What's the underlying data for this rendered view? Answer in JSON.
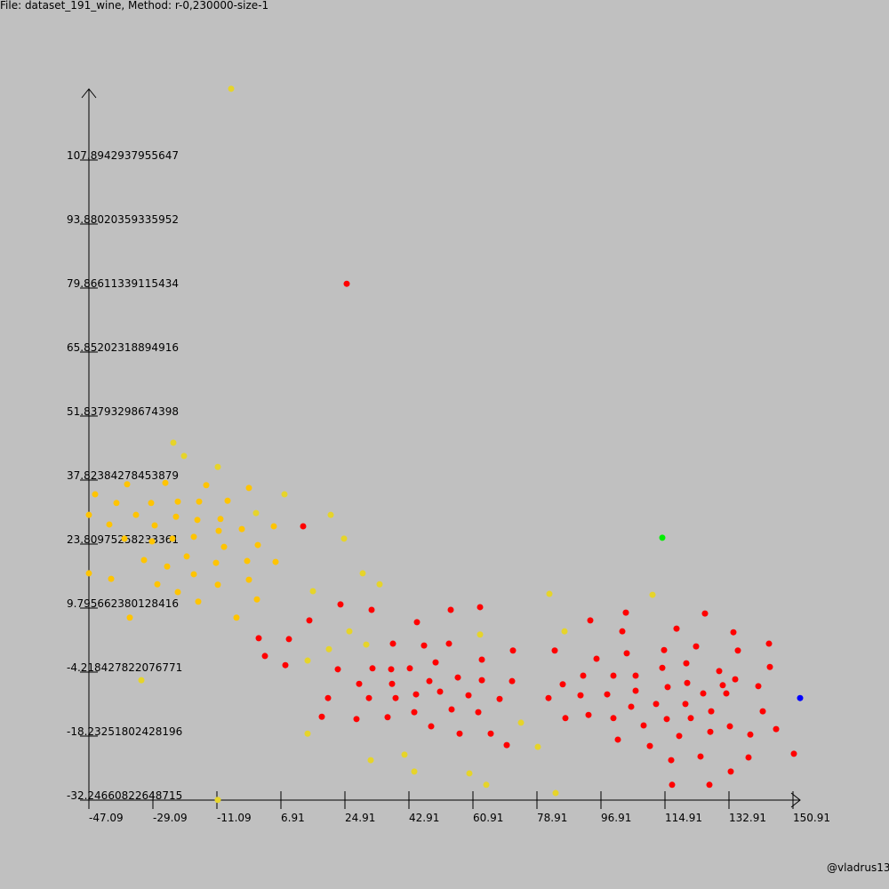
{
  "chart_data": {
    "type": "scatter",
    "title": "File: dataset_191_wine, Method: r-0,230000-size-1",
    "credit": "@vladrus13",
    "xlim": [
      -47.09,
      152.91
    ],
    "xticks": [
      -47.09,
      -29.09,
      -11.09,
      6.91,
      24.91,
      42.91,
      60.91,
      78.91,
      96.91,
      114.91,
      132.91,
      150.91
    ],
    "ylim": [
      -32.24660822648715,
      123.4654
    ],
    "yticks": [
      -32.24660822648715,
      -18.23251802428196,
      -4.218427822076771,
      9.795662380128416,
      23.80975258233361,
      37.82384278453879,
      51.83793298674398,
      65.85202318894916,
      79.86611339115434,
      93.88020359335952,
      107.8942937955647
    ],
    "series": [
      {
        "color": "#e6d42a",
        "x": [
          -7.09,
          -23.34,
          -20.34,
          -10.84,
          -0.09,
          7.91,
          20.91,
          24.66,
          15.91,
          29.91,
          34.66,
          26.16,
          30.91,
          20.41,
          14.41,
          -32.34,
          14.41,
          32.16,
          41.66,
          44.41,
          59.91,
          64.66,
          62.91,
          74.41,
          79.16,
          82.41,
          86.66,
          84.16,
          111.41,
          -10.84
        ],
        "y": [
          123.5,
          46.0,
          43.1,
          40.7,
          30.6,
          34.7,
          30.2,
          25.0,
          13.5,
          17.4,
          15.0,
          4.7,
          1.8,
          0.8,
          -1.7,
          -6.0,
          -17.7,
          -23.5,
          -22.3,
          -26.0,
          -26.4,
          -28.9,
          4.0,
          -15.3,
          -20.6,
          12.9,
          4.7,
          -30.7,
          12.7,
          -32.2
        ]
      },
      {
        "color": "#ffc400",
        "x": [
          -45.34,
          -47.09,
          -47.09,
          -41.34,
          -39.34,
          -40.84,
          -36.34,
          -37.09,
          -35.59,
          -33.84,
          -31.59,
          -29.59,
          -28.59,
          -29.34,
          -27.84,
          -25.59,
          -25.09,
          -23.59,
          -22.59,
          -22.09,
          -22.09,
          -19.59,
          -17.59,
          -17.59,
          -16.59,
          -16.09,
          -16.34,
          -14.09,
          -11.34,
          -10.59,
          -10.09,
          -9.09,
          -10.84,
          -8.09,
          -5.59,
          -4.09,
          -2.59,
          -2.09,
          -2.09,
          0.41,
          0.16,
          4.91,
          5.41
        ],
        "y": [
          34.7,
          30.2,
          17.4,
          28.1,
          32.8,
          16.2,
          36.9,
          25.0,
          7.7,
          30.2,
          20.3,
          32.8,
          27.9,
          24.4,
          15.0,
          37.2,
          18.9,
          25.0,
          29.8,
          33.1,
          13.3,
          21.1,
          25.4,
          17.2,
          29.1,
          33.1,
          11.2,
          36.7,
          19.7,
          26.7,
          29.3,
          23.2,
          14.9,
          33.3,
          7.7,
          27.1,
          20.1,
          36.1,
          16.0,
          23.6,
          11.7,
          27.7,
          19.9
        ]
      },
      {
        "color": "#ff0000",
        "x": [
          25.41,
          13.16,
          23.66,
          14.91,
          32.41,
          0.66,
          9.16,
          2.41,
          8.16,
          22.91,
          20.16,
          18.41,
          28.16,
          28.91,
          31.66,
          32.66,
          38.41,
          37.91,
          38.16,
          39.16,
          36.91,
          45.16,
          47.16,
          43.16,
          44.91,
          44.41,
          49.16,
          50.41,
          48.66,
          51.66,
          54.66,
          54.16,
          56.66,
          54.91,
          59.66,
          57.16,
          62.91,
          63.41,
          63.41,
          62.41,
          65.91,
          72.16,
          71.91,
          68.41,
          70.41,
          82.16,
          83.91,
          86.16,
          86.91,
          91.91,
          91.16,
          93.91,
          95.66,
          93.41,
          98.66,
          100.41,
          100.41,
          101.66,
          103.91,
          102.91,
          104.16,
          106.66,
          106.66,
          105.41,
          108.91,
          110.66,
          112.41,
          114.16,
          114.66,
          115.66,
          115.41,
          116.66,
          116.91,
          118.16,
          118.91,
          120.91,
          121.16,
          120.66,
          122.16,
          123.66,
          124.91,
          126.16,
          125.66,
          127.91,
          127.66,
          127.41,
          130.16,
          131.16,
          133.16,
          133.41,
          134.16,
          134.66,
          135.41,
          132.16,
          138.41,
          138.91,
          141.16,
          142.41,
          144.41,
          144.16,
          146.16,
          151.16
        ],
        "y": [
          80.8,
          27.7,
          10.6,
          7.1,
          9.4,
          3.2,
          3.0,
          -0.7,
          -2.7,
          -3.6,
          -9.9,
          -14.0,
          -14.5,
          -6.8,
          -9.9,
          -3.4,
          2.0,
          -3.6,
          -6.8,
          -9.9,
          -14.1,
          6.7,
          1.6,
          -3.4,
          -9.1,
          -13.0,
          -16.1,
          -2.1,
          -6.2,
          -8.5,
          9.4,
          2.0,
          -5.4,
          -12.4,
          -9.3,
          -17.7,
          10.0,
          -1.5,
          -6.0,
          -13.0,
          -17.7,
          0.5,
          -6.2,
          -10.1,
          -20.2,
          -9.9,
          0.5,
          -6.9,
          -14.3,
          -5.0,
          -9.3,
          7.1,
          -1.3,
          -13.6,
          -9.1,
          -5.0,
          -14.3,
          -19.0,
          8.8,
          4.7,
          -0.1,
          -5.0,
          -8.3,
          -11.8,
          -15.9,
          -20.4,
          -11.2,
          -3.3,
          0.6,
          -7.5,
          -14.5,
          -23.5,
          -28.9,
          5.3,
          -18.2,
          -2.3,
          -6.6,
          -11.2,
          -14.3,
          1.4,
          -22.7,
          8.6,
          -8.9,
          -12.8,
          -17.3,
          -28.9,
          -4.0,
          -7.1,
          -16.1,
          -26.0,
          4.5,
          -5.8,
          0.5,
          -8.9,
          -22.9,
          -17.9,
          -7.3,
          -12.8,
          -3.1,
          2.0,
          -16.7,
          -22.1
        ]
      },
      {
        "color": "#00ee00",
        "x": [
          114.16
        ],
        "y": [
          25.2
        ]
      },
      {
        "color": "#0000ff",
        "x": [
          152.91
        ],
        "y": [
          -9.9
        ]
      }
    ]
  }
}
